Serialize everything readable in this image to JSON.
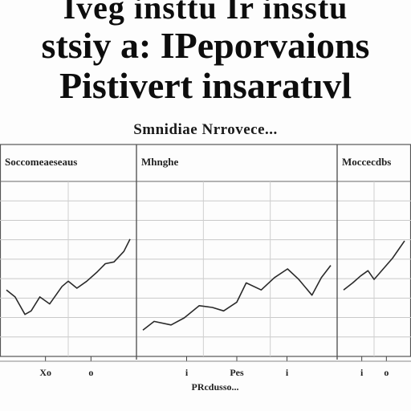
{
  "header": {
    "line1": "Iveg insttu Ir insstu",
    "line2": "stsiy a: IPeporvaions",
    "line3": "Pistivert insaratıvl",
    "subtitle": "Smnidiae Nrrovece..."
  },
  "chart_data": {
    "type": "line",
    "grid": true,
    "legend": "none",
    "series_color": "#2a2a2a",
    "panels": [
      {
        "title": "Soccomeaeseaus",
        "xlim": [
          0,
          10
        ],
        "ylim": [
          0,
          10
        ],
        "series": [
          {
            "x": [
              0,
              0.7,
              1.5,
              2,
              2.7,
              3.5,
              4.5,
              5,
              5.7,
              6.5,
              7.3,
              8,
              8.7,
              9.5,
              10
            ],
            "y": [
              3.8,
              3.4,
              2.4,
              2.6,
              3.4,
              3.0,
              4.0,
              4.3,
              3.9,
              4.3,
              4.8,
              5.3,
              5.4,
              6.0,
              6.7
            ]
          }
        ],
        "x_tick_labels": [
          "Xo",
          "o"
        ]
      },
      {
        "title": "Mhnghe",
        "xlim": [
          0,
          10
        ],
        "ylim": [
          0,
          10
        ],
        "series": [
          {
            "x": [
              0,
              0.6,
              1.5,
              2.2,
              3,
              3.7,
              4.3,
              5,
              5.5,
              6.3,
              7,
              7.7,
              8.3,
              9,
              9.5,
              10
            ],
            "y": [
              1.5,
              2.0,
              1.8,
              2.2,
              2.9,
              2.8,
              2.6,
              3.1,
              4.2,
              3.8,
              4.5,
              5.0,
              4.4,
              3.5,
              4.5,
              5.2
            ]
          }
        ],
        "x_tick_labels": [
          "i",
          "Pes",
          "i"
        ]
      },
      {
        "title": "Moccecdbs",
        "xlim": [
          0,
          10
        ],
        "ylim": [
          0,
          10
        ],
        "series": [
          {
            "x": [
              0,
              1.5,
              2.8,
              4,
              5,
              6,
              7,
              8,
              9,
              10
            ],
            "y": [
              3.8,
              4.2,
              4.6,
              4.9,
              4.4,
              4.8,
              5.2,
              5.6,
              6.1,
              6.6
            ]
          }
        ],
        "x_tick_labels": [
          "i",
          "o"
        ]
      }
    ],
    "x_axis_label": "PRcdusso..."
  }
}
